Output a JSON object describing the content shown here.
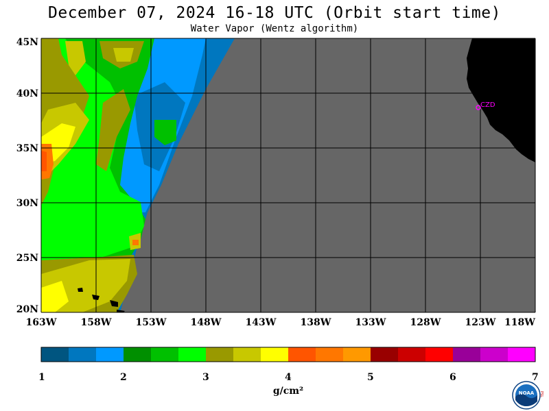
{
  "header": {
    "title": "December 07, 2024  16-18 UTC  (Orbit start time)",
    "subtitle": "Water Vapor (Wentz algorithm)"
  },
  "map": {
    "lat_labels": [
      "45N",
      "40N",
      "35N",
      "30N",
      "25N",
      "20N"
    ],
    "lon_labels": [
      "163W",
      "158W",
      "153W",
      "148W",
      "143W",
      "138W",
      "133W",
      "128W",
      "123W",
      "118W"
    ],
    "station_label": "CZD",
    "colors": {
      "no_data": "#666666",
      "land": "#000000",
      "grid": "#000000",
      "station": "#ff00ff"
    }
  },
  "colorbar": {
    "tick_labels": [
      "1",
      "2",
      "3",
      "4",
      "5",
      "6",
      "7"
    ],
    "unit": "g/cm²",
    "colors": [
      "#005580",
      "#0077bf",
      "#0099ff",
      "#008f00",
      "#00c000",
      "#00ff00",
      "#999900",
      "#c8c800",
      "#ffff00",
      "#ff5500",
      "#ff7700",
      "#ff9900",
      "#990000",
      "#cc0000",
      "#ff0000",
      "#990099",
      "#cc00cc",
      "#ff00ff"
    ]
  },
  "logo": {
    "text": "NOAA",
    "side_text": "PSL"
  }
}
